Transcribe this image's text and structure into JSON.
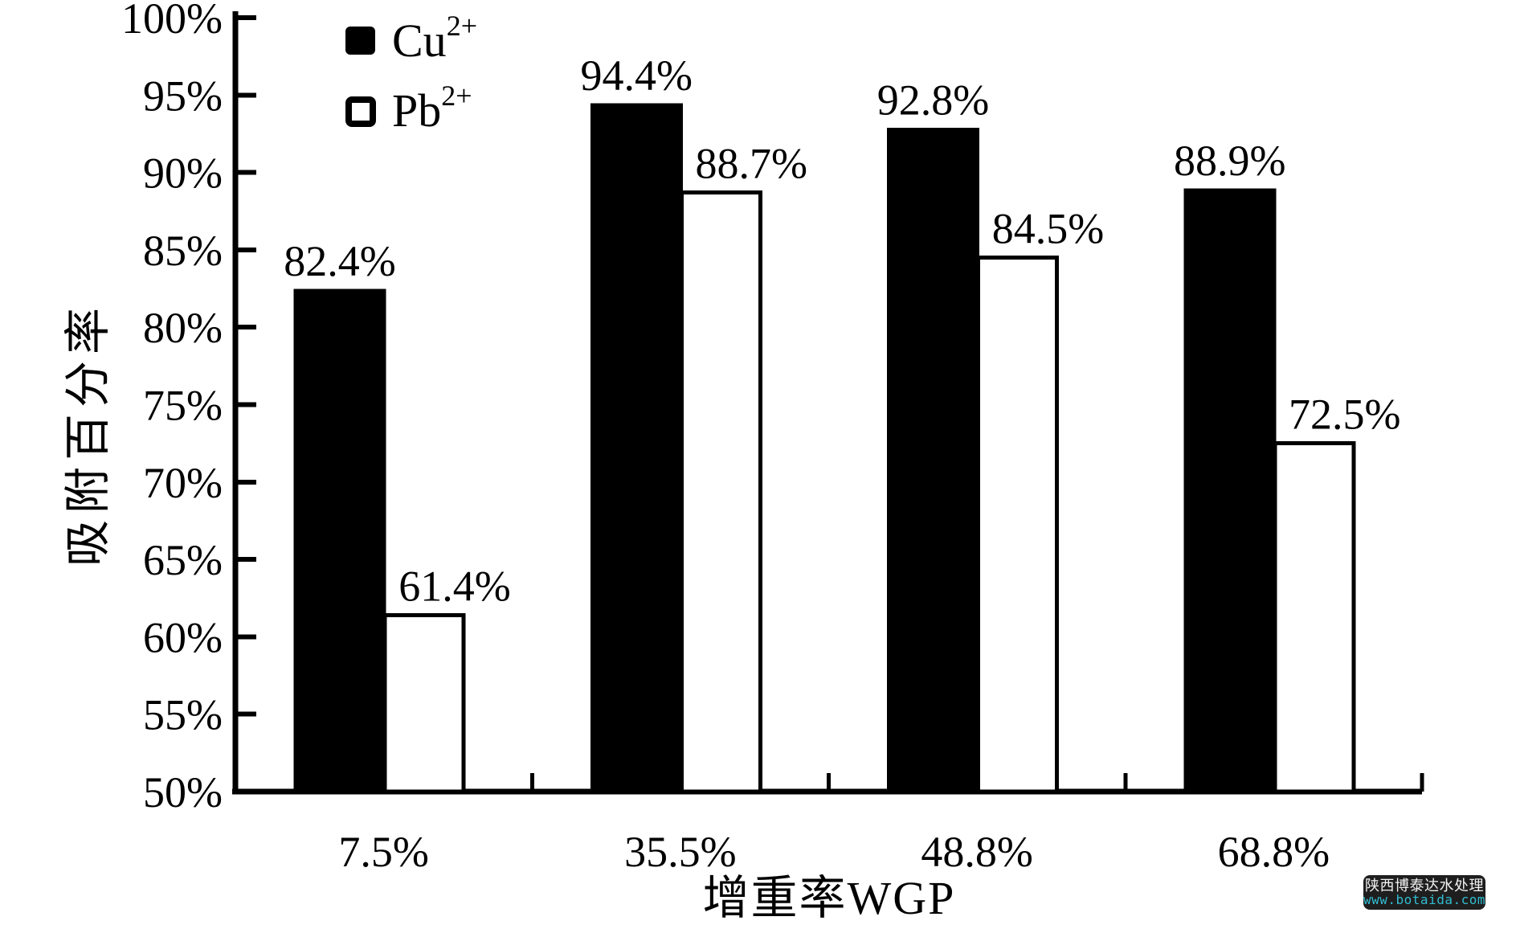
{
  "chart_data": {
    "type": "bar",
    "title": "",
    "categories": [
      "7.5%",
      "35.5%",
      "48.8%",
      "68.8%"
    ],
    "series": [
      {
        "name": "Cu²⁺",
        "base": "Cu",
        "sup": "2+",
        "values": [
          82.4,
          94.4,
          92.8,
          88.9
        ],
        "labels": [
          "82.4%",
          "94.4%",
          "92.8%",
          "88.9%"
        ],
        "fill": "#000000",
        "swatch": "filled-black"
      },
      {
        "name": "Pb²⁺",
        "base": "Pb",
        "sup": "2+",
        "values": [
          61.4,
          88.7,
          84.5,
          72.5
        ],
        "labels": [
          "61.4%",
          "88.7%",
          "84.5%",
          "72.5%"
        ],
        "fill": "#ffffff",
        "swatch": "open-white"
      }
    ],
    "xlabel": "增重率WGP",
    "ylabel": "吸附百分率",
    "ylim": [
      50,
      100
    ],
    "y_tick_step": 5,
    "y_tick_labels": [
      "50%",
      "55%",
      "60%",
      "65%",
      "70%",
      "75%",
      "80%",
      "85%",
      "90%",
      "95%",
      "100%"
    ],
    "grid": false,
    "legend_position": "top-left-inside"
  },
  "colors": {
    "axis": "#000000",
    "text": "#000000",
    "background": "#ffffff"
  },
  "watermark": {
    "line1": "陕西博泰达水处理",
    "line2": "www.botaida.com",
    "bg": "#1e1e1e",
    "line1_color": "#f2f2f2",
    "line2_color": "#30bcd1"
  }
}
